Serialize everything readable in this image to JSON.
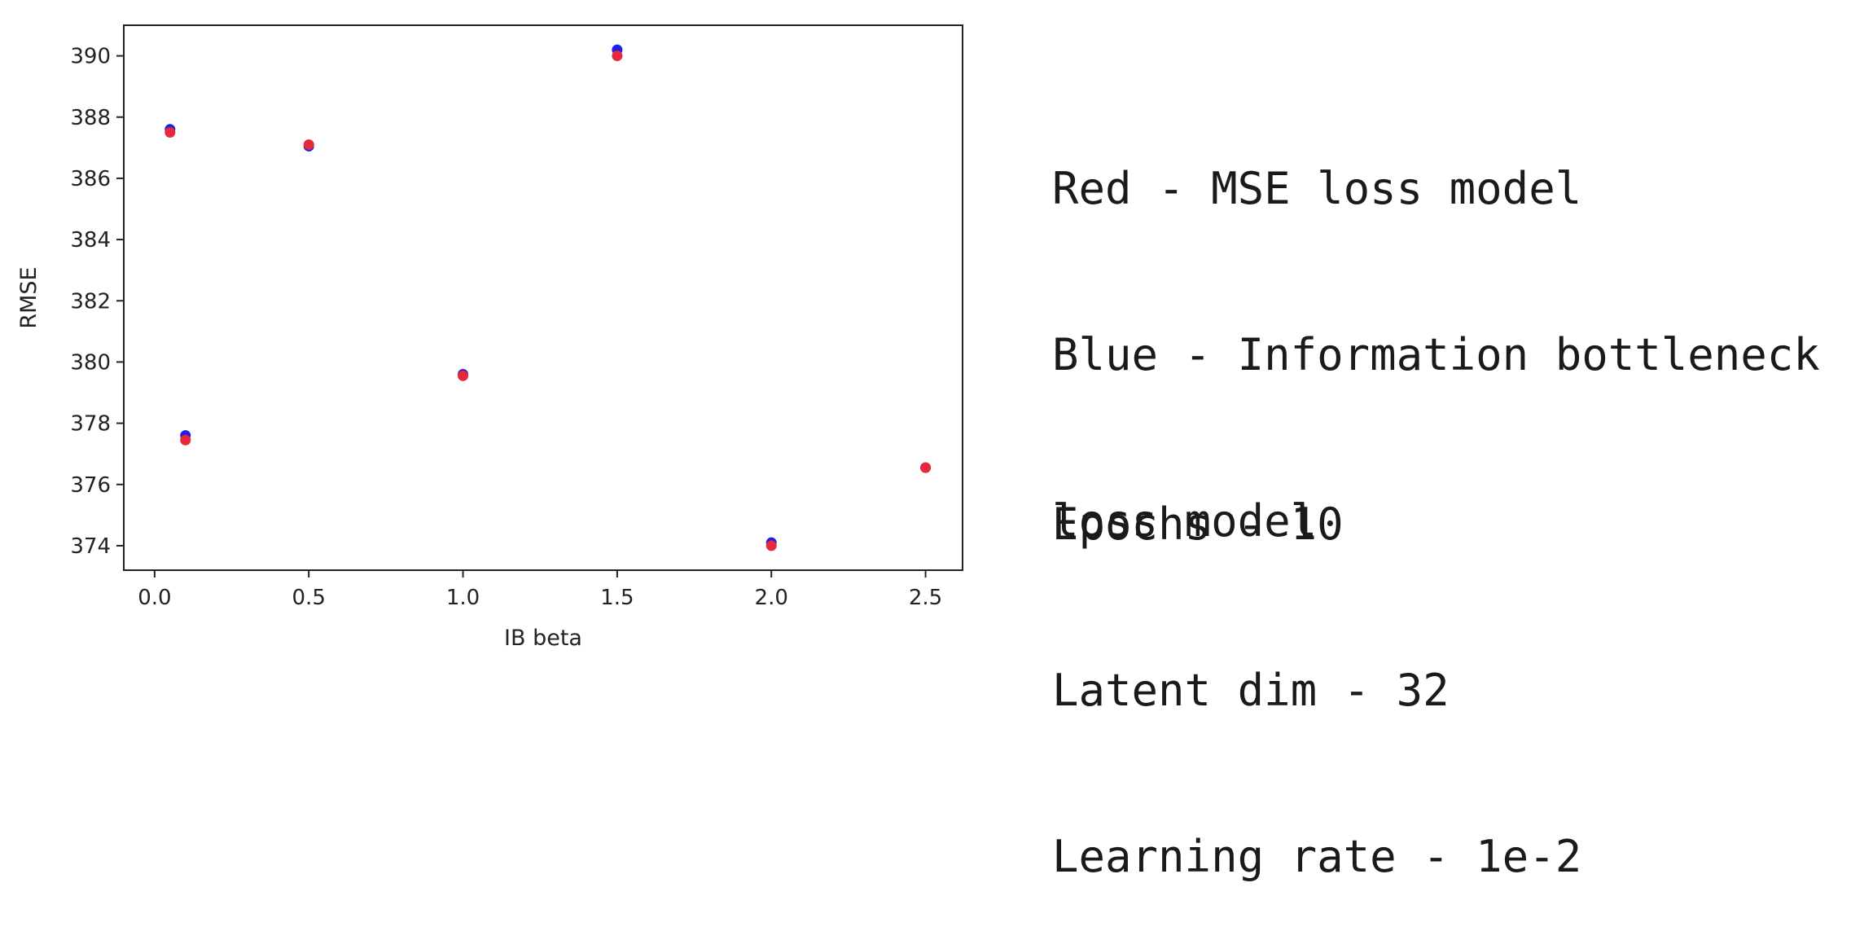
{
  "chart_data": {
    "type": "scatter",
    "xlabel": "IB beta",
    "ylabel": "RMSE",
    "xlim": [
      -0.1,
      2.62
    ],
    "ylim": [
      373.2,
      391.0
    ],
    "xticks": [
      "0.0",
      "0.5",
      "1.0",
      "1.5",
      "2.0",
      "2.5"
    ],
    "xtick_values": [
      0.0,
      0.5,
      1.0,
      1.5,
      2.0,
      2.5
    ],
    "yticks": [
      "374",
      "376",
      "378",
      "380",
      "382",
      "384",
      "386",
      "388",
      "390"
    ],
    "ytick_values": [
      374,
      376,
      378,
      380,
      382,
      384,
      386,
      388,
      390
    ],
    "grid": false,
    "series": [
      {
        "color": "#1f1fe6",
        "x": [
          0.05,
          0.1,
          0.5,
          1.0,
          1.5,
          2.0,
          2.5
        ],
        "y": [
          387.6,
          377.6,
          387.05,
          379.6,
          390.2,
          374.1,
          376.55
        ]
      },
      {
        "color": "#e6283c",
        "x": [
          0.05,
          0.1,
          0.5,
          1.0,
          1.5,
          2.0,
          2.5
        ],
        "y": [
          387.5,
          377.45,
          387.1,
          379.55,
          390.0,
          374.0,
          376.55
        ]
      }
    ]
  },
  "notes": {
    "legend_lines": [
      "Red - MSE loss model",
      "Blue - Information bottleneck",
      "loss model"
    ],
    "param_lines": [
      "Epochs - 10",
      "Latent dim - 32",
      "Learning rate - 1e-2"
    ]
  }
}
